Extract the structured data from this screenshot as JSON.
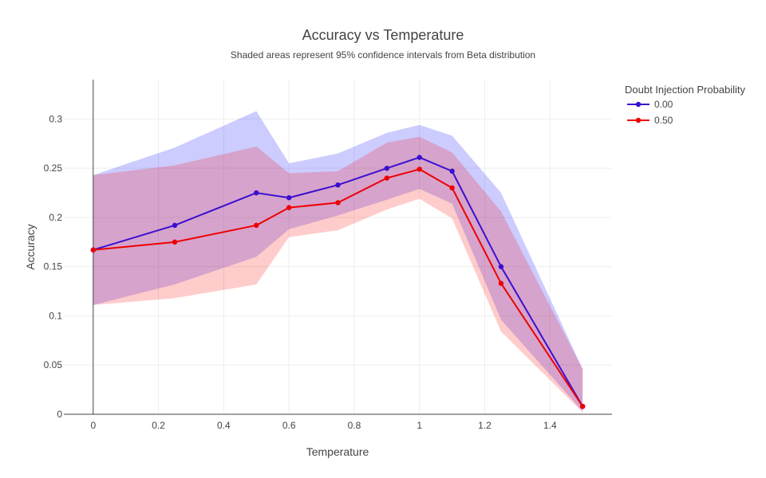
{
  "chart_data": {
    "type": "line",
    "title": "Accuracy vs Temperature",
    "subtitle": "Shaded areas represent 95% confidence intervals from Beta distribution",
    "xlabel": "Temperature",
    "ylabel": "Accuracy",
    "xlim": [
      -0.09,
      1.59
    ],
    "ylim": [
      0,
      0.34
    ],
    "x_ticks": [
      0,
      0.2,
      0.4,
      0.6,
      0.8,
      1,
      1.2,
      1.4
    ],
    "x_tick_labels": [
      "0",
      "0.2",
      "0.4",
      "0.6",
      "0.8",
      "1",
      "1.2",
      "1.4"
    ],
    "y_ticks": [
      0,
      0.05,
      0.1,
      0.15,
      0.2,
      0.25,
      0.3
    ],
    "y_tick_labels": [
      "0",
      "0.05",
      "0.1",
      "0.15",
      "0.2",
      "0.25",
      "0.3"
    ],
    "grid": true,
    "legend": {
      "title": "Doubt Injection Probability",
      "placement": "top-right"
    },
    "x": [
      0,
      0.25,
      0.5,
      0.6,
      0.75,
      0.9,
      1.0,
      1.1,
      1.25,
      1.5
    ],
    "series": [
      {
        "name": "0.00",
        "color": "#3a0fd0",
        "band_color": "#0000ff",
        "values": [
          0.167,
          0.192,
          0.225,
          0.22,
          0.233,
          0.25,
          0.261,
          0.247,
          0.15,
          0.008
        ],
        "upper": [
          0.243,
          0.271,
          0.308,
          0.255,
          0.265,
          0.286,
          0.294,
          0.283,
          0.225,
          0.046
        ],
        "lower": [
          0.111,
          0.132,
          0.16,
          0.188,
          0.202,
          0.218,
          0.229,
          0.214,
          0.096,
          0.003
        ]
      },
      {
        "name": "0.50",
        "color": "#ee0000",
        "band_color": "#ff0000",
        "values": [
          0.167,
          0.175,
          0.192,
          0.21,
          0.215,
          0.24,
          0.249,
          0.23,
          0.133,
          0.008
        ],
        "upper": [
          0.243,
          0.253,
          0.272,
          0.245,
          0.247,
          0.276,
          0.282,
          0.266,
          0.206,
          0.046
        ],
        "lower": [
          0.111,
          0.118,
          0.132,
          0.18,
          0.187,
          0.208,
          0.219,
          0.199,
          0.084,
          0.002
        ]
      }
    ]
  }
}
